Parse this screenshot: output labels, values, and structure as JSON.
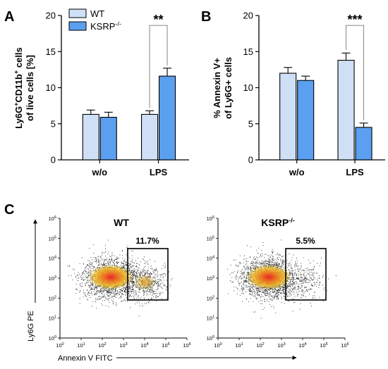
{
  "panels": {
    "A": "A",
    "B": "B",
    "C": "C"
  },
  "colors": {
    "wt": "#cfe0f6",
    "ksrp": "#5b9ff0",
    "stroke": "#000000"
  },
  "legend": {
    "wt": "WT",
    "ksrp": "KSRP",
    "ksrp_sup": "-/-"
  },
  "chart_data": [
    {
      "type": "bar",
      "panel": "A",
      "categories": [
        "w/o",
        "LPS"
      ],
      "series": [
        {
          "name": "WT",
          "values": [
            6.3,
            6.3
          ],
          "errors": [
            0.6,
            0.5
          ]
        },
        {
          "name": "KSRP-/-",
          "values": [
            5.9,
            11.6
          ],
          "errors": [
            0.7,
            1.1
          ]
        }
      ],
      "ylabel_line1": "Ly6G",
      "ylabel_sup1": "+",
      "ylabel_mid": "CD11b",
      "ylabel_sup2": "+",
      "ylabel_tail": " cells",
      "ylabel_line2": "of live cells [%]",
      "ylim": [
        0,
        20
      ],
      "yticks": [
        "0",
        "5",
        "10",
        "15",
        "20"
      ],
      "significance": "**"
    },
    {
      "type": "bar",
      "panel": "B",
      "categories": [
        "w/o",
        "LPS"
      ],
      "series": [
        {
          "name": "WT",
          "values": [
            12.0,
            13.8
          ],
          "errors": [
            0.8,
            1.0
          ]
        },
        {
          "name": "KSRP-/-",
          "values": [
            11.0,
            4.5
          ],
          "errors": [
            0.6,
            0.6
          ]
        }
      ],
      "ylabel_line1": "% Annexin V+",
      "ylabel_line2": "of Ly6G+ cells",
      "ylim": [
        0,
        20
      ],
      "yticks": [
        "0",
        "5",
        "10",
        "15",
        "20"
      ],
      "significance": "***"
    }
  ],
  "flow": {
    "wt": {
      "title": "WT",
      "gate_pct": "11.7%"
    },
    "ksrp": {
      "title": "KSRP",
      "title_sup": "-/-",
      "gate_pct": "5.5%"
    },
    "y_axis_label": "Ly6G PE",
    "x_axis_label": "Annexin V FITC",
    "tick_base": "10",
    "tick_exps": [
      "0",
      "1",
      "2",
      "3",
      "4",
      "5",
      "6"
    ]
  }
}
